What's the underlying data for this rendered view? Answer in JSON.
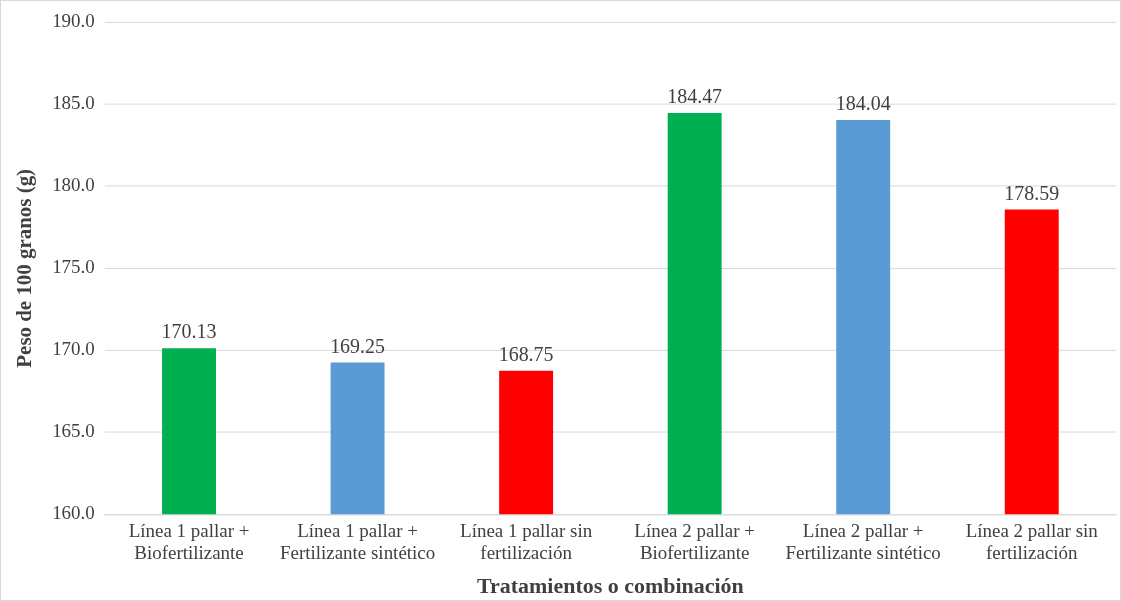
{
  "chart_data": {
    "type": "bar",
    "xlabel": "Tratamientos o combinación",
    "ylabel": "Peso de 100 granos (g)",
    "categories": [
      "Línea 1 pallar + Biofertilizante",
      "Línea 1 pallar + Fertilizante sintético",
      "Línea 1 pallar sin fertilización",
      "Línea 2 pallar + Biofertilizante",
      "Línea 2 pallar + Fertilizante sintético",
      "Línea 2 pallar sin fertilización"
    ],
    "values": [
      170.13,
      169.25,
      168.75,
      184.47,
      184.04,
      178.59
    ],
    "colors": [
      "#00b050",
      "#5b9bd5",
      "#ff0000",
      "#00b050",
      "#5b9bd5",
      "#ff0000"
    ],
    "ylim": [
      160,
      190
    ],
    "yticks": [
      {
        "value": 160,
        "label": "160.0"
      },
      {
        "value": 165,
        "label": "165.0"
      },
      {
        "value": 170,
        "label": "170.0"
      },
      {
        "value": 175,
        "label": "175.0"
      },
      {
        "value": 180,
        "label": "180.0"
      },
      {
        "value": 185,
        "label": "185.0"
      },
      {
        "value": 190,
        "label": "190.0"
      }
    ],
    "grid": "y",
    "legend": false,
    "data_labels": true
  }
}
